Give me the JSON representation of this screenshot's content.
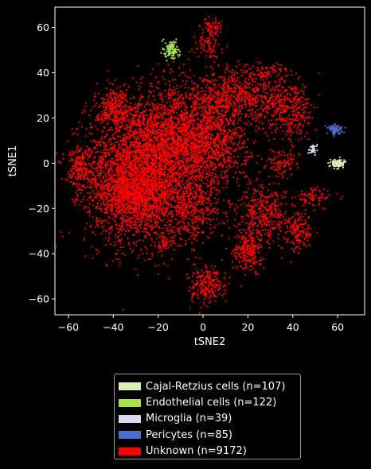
{
  "chart_data": {
    "type": "scatter",
    "xlabel": "tSNE2",
    "ylabel": "tSNE1",
    "xlim": [
      -66,
      72
    ],
    "ylim": [
      -67,
      69
    ],
    "xticks": [
      "−60",
      "−40",
      "−20",
      "0",
      "20",
      "40",
      "60"
    ],
    "xtick_values": [
      -60,
      -40,
      -20,
      0,
      20,
      40,
      60
    ],
    "yticks": [
      "−60",
      "−40",
      "−20",
      "0",
      "20",
      "40",
      "60"
    ],
    "ytick_values": [
      -60,
      -40,
      -20,
      0,
      20,
      40,
      60
    ],
    "grid": false,
    "legend_placement": "below",
    "background": "#000000",
    "series": [
      {
        "name": "Unknown (n=9172)",
        "color": "#ff0000",
        "n": 9172,
        "clusters": [
          {
            "cx": -30,
            "cy": -3,
            "sx": 11,
            "sy": 16,
            "w": 0.28
          },
          {
            "cx": -12,
            "cy": 8,
            "sx": 9,
            "sy": 12,
            "w": 0.16
          },
          {
            "cx": 5,
            "cy": 12,
            "sx": 8,
            "sy": 12,
            "w": 0.1
          },
          {
            "cx": -40,
            "cy": 25,
            "sx": 4,
            "sy": 4,
            "w": 0.025
          },
          {
            "cx": -55,
            "cy": -2,
            "sx": 3,
            "sy": 5,
            "w": 0.02
          },
          {
            "cx": -30,
            "cy": -15,
            "sx": 9,
            "sy": 7,
            "w": 0.08
          },
          {
            "cx": 2,
            "cy": 53,
            "sx": 3,
            "sy": 4,
            "w": 0.01
          },
          {
            "cx": 5,
            "cy": 60,
            "sx": 2,
            "sy": 1.5,
            "w": 0.005
          },
          {
            "cx": 2,
            "cy": -54,
            "sx": 4,
            "sy": 4,
            "w": 0.025
          },
          {
            "cx": 20,
            "cy": -38,
            "sx": 3,
            "sy": 5,
            "w": 0.025
          },
          {
            "cx": 28,
            "cy": -22,
            "sx": 6,
            "sy": 7,
            "w": 0.04
          },
          {
            "cx": 43,
            "cy": -30,
            "sx": 3,
            "sy": 4,
            "w": 0.015
          },
          {
            "cx": 50,
            "cy": -15,
            "sx": 4,
            "sy": 2,
            "w": 0.008
          },
          {
            "cx": 35,
            "cy": 0,
            "sx": 4,
            "sy": 3,
            "w": 0.01
          },
          {
            "cx": 35,
            "cy": 25,
            "sx": 6,
            "sy": 6,
            "w": 0.03
          },
          {
            "cx": 42,
            "cy": 20,
            "sx": 3,
            "sy": 6,
            "w": 0.01
          },
          {
            "cx": -17,
            "cy": -36,
            "sx": 2,
            "sy": 2,
            "w": 0.005
          },
          {
            "cx": 15,
            "cy": 30,
            "sx": 10,
            "sy": 5,
            "w": 0.05
          },
          {
            "cx": -5,
            "cy": -20,
            "sx": 6,
            "sy": 8,
            "w": 0.04
          },
          {
            "cx": 28,
            "cy": 40,
            "sx": 6,
            "sy": 2,
            "w": 0.01
          }
        ]
      },
      {
        "name": "Cajal-Retzius cells (n=107)",
        "color": "#d9efb3",
        "n": 107,
        "clusters": [
          {
            "cx": 60,
            "cy": 0,
            "sx": 1.5,
            "sy": 1,
            "w": 1
          }
        ]
      },
      {
        "name": "Endothelial cells (n=122)",
        "color": "#a6e04a",
        "n": 122,
        "clusters": [
          {
            "cx": -14,
            "cy": 50,
            "sx": 1.5,
            "sy": 2,
            "w": 1
          }
        ]
      },
      {
        "name": "Microglia (n=39)",
        "color": "#dcd6ef",
        "n": 39,
        "clusters": [
          {
            "cx": 49,
            "cy": 6,
            "sx": 1,
            "sy": 1,
            "w": 1
          }
        ]
      },
      {
        "name": "Pericytes (n=85)",
        "color": "#4a6fd0",
        "n": 85,
        "clusters": [
          {
            "cx": 59,
            "cy": 15,
            "sx": 1.5,
            "sy": 1,
            "w": 1
          }
        ]
      }
    ]
  },
  "legend": {
    "items": [
      {
        "label": "Cajal-Retzius cells (n=107)",
        "color": "#d9efb3"
      },
      {
        "label": "Endothelial cells (n=122)",
        "color": "#a6e04a"
      },
      {
        "label": "Microglia (n=39)",
        "color": "#dcd6ef"
      },
      {
        "label": "Pericytes (n=85)",
        "color": "#4a6fd0"
      },
      {
        "label": "Unknown (n=9172)",
        "color": "#ff0000"
      }
    ]
  }
}
